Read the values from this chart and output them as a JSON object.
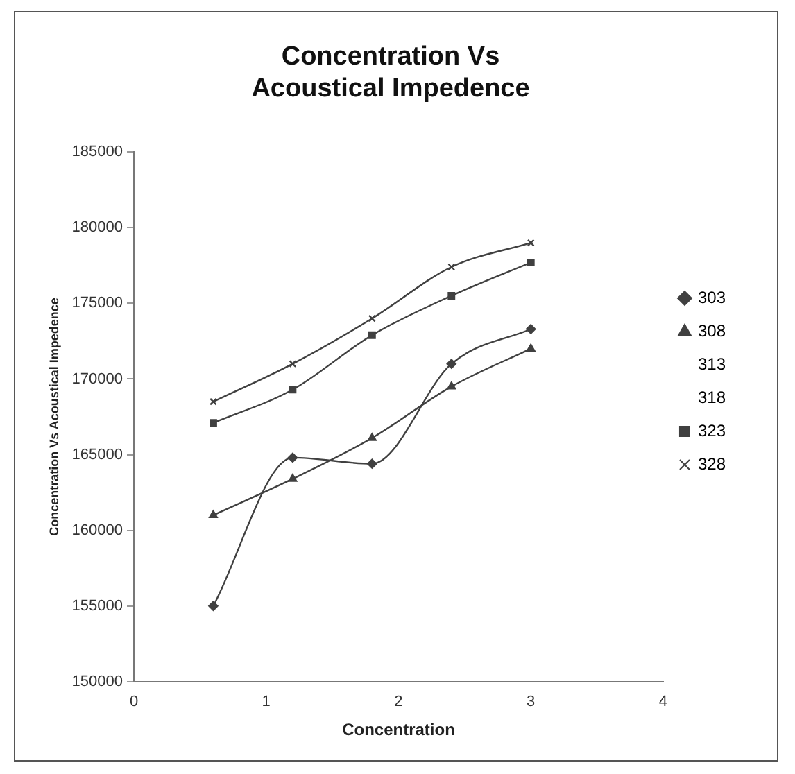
{
  "chart_data": {
    "type": "line",
    "title": "Concentration Vs Acoustical Impedence",
    "xlabel": "Concentration",
    "ylabel": "Concentration Vs Acoustical Impedence",
    "x": [
      0.6,
      1.2,
      1.8,
      2.4,
      3.0
    ],
    "xlim": [
      0,
      4
    ],
    "xticks": [
      0,
      1,
      2,
      3,
      4
    ],
    "ylim": [
      150000,
      185000
    ],
    "yticks": [
      150000,
      155000,
      160000,
      165000,
      170000,
      175000,
      180000,
      185000
    ],
    "grid": false,
    "legend": "right",
    "series": [
      {
        "name": "303",
        "color": "#404040",
        "marker": "diamond",
        "values": [
          155000,
          164800,
          164400,
          171000,
          173300
        ]
      },
      {
        "name": "308",
        "color": "#404040",
        "marker": "triangle",
        "values": [
          161000,
          163400,
          166100,
          169500,
          172000
        ]
      },
      {
        "name": "313",
        "marker": "none",
        "values": [
          null,
          null,
          null,
          null,
          null
        ]
      },
      {
        "name": "318",
        "marker": "none",
        "values": [
          null,
          null,
          null,
          null,
          null
        ]
      },
      {
        "name": "323",
        "color": "#404040",
        "marker": "square",
        "values": [
          167100,
          169300,
          172900,
          175500,
          177700
        ]
      },
      {
        "name": "328",
        "color": "#404040",
        "marker": "cross",
        "values": [
          168500,
          171000,
          174000,
          177400,
          179000
        ]
      }
    ]
  }
}
